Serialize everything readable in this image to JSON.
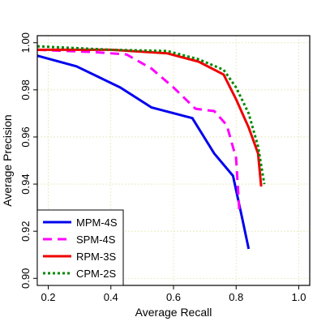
{
  "chart_data": {
    "type": "line",
    "title": "",
    "xlabel": "Average Recall",
    "ylabel": "Average Precision",
    "xlim": [
      0.165,
      1.035
    ],
    "ylim": [
      0.897,
      1.003
    ],
    "xticks": [
      "0.2",
      "0.4",
      "0.6",
      "0.8",
      "1.0"
    ],
    "yticks": [
      "0.90",
      "0.92",
      "0.94",
      "0.96",
      "0.98",
      "1.00"
    ],
    "grid": true,
    "legend_position": "bottom-left",
    "series": [
      {
        "name": "MPM-4S",
        "color": "#0000ee",
        "dash": "solid",
        "x": [
          0.165,
          0.29,
          0.43,
          0.53,
          0.66,
          0.73,
          0.79,
          0.82,
          0.84
        ],
        "y": [
          0.9945,
          0.99,
          0.981,
          0.9725,
          0.968,
          0.953,
          0.9435,
          0.925,
          0.9125
        ]
      },
      {
        "name": "SPM-4S",
        "color": "#ff00ff",
        "dash": "dashed",
        "x": [
          0.165,
          0.35,
          0.45,
          0.53,
          0.6,
          0.67,
          0.73,
          0.77,
          0.8,
          0.81
        ],
        "y": [
          0.997,
          0.996,
          0.995,
          0.989,
          0.981,
          0.972,
          0.971,
          0.965,
          0.951,
          0.929
        ]
      },
      {
        "name": "RPM-3S",
        "color": "#ee0000",
        "dash": "solid",
        "x": [
          0.165,
          0.4,
          0.58,
          0.68,
          0.76,
          0.8,
          0.84,
          0.87,
          0.88
        ],
        "y": [
          0.997,
          0.997,
          0.9955,
          0.992,
          0.9865,
          0.976,
          0.964,
          0.953,
          0.939
        ]
      },
      {
        "name": "CPM-2S",
        "color": "#008800",
        "dash": "dotted",
        "x": [
          0.165,
          0.4,
          0.58,
          0.68,
          0.76,
          0.8,
          0.84,
          0.87,
          0.89
        ],
        "y": [
          0.9985,
          0.997,
          0.9965,
          0.993,
          0.9885,
          0.981,
          0.97,
          0.956,
          0.94
        ]
      }
    ]
  }
}
